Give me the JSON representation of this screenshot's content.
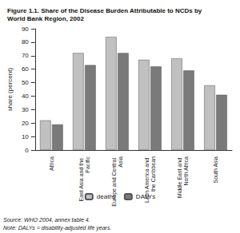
{
  "chart_data": {
    "type": "bar",
    "title": "Figure 1.1. Share of the Disease Burden Attributable to NCDs by World Bank Region, 2002",
    "categories": [
      "Africa",
      "East Asia and the Pacific",
      "Europe and Central Asia",
      "Latin America and the Caribbean",
      "Middle East and North Africa",
      "South Asia"
    ],
    "series": [
      {
        "name": "deaths",
        "color": "#c0c0c0",
        "values": [
          22,
          72,
          84,
          67,
          68,
          48
        ]
      },
      {
        "name": "DALYs",
        "color": "#7a7a7a",
        "values": [
          19,
          63,
          72,
          62,
          59,
          41
        ]
      }
    ],
    "y_label": "share (percent)",
    "ylim": [
      0,
      90
    ],
    "yticks": [
      0,
      10,
      20,
      30,
      40,
      50,
      60,
      70,
      80,
      90
    ],
    "grid": false,
    "legend": "bottom",
    "source": "Source: WHO 2004, annex table 4.",
    "note": "Note: DALYs = disability-adjusted life years."
  }
}
